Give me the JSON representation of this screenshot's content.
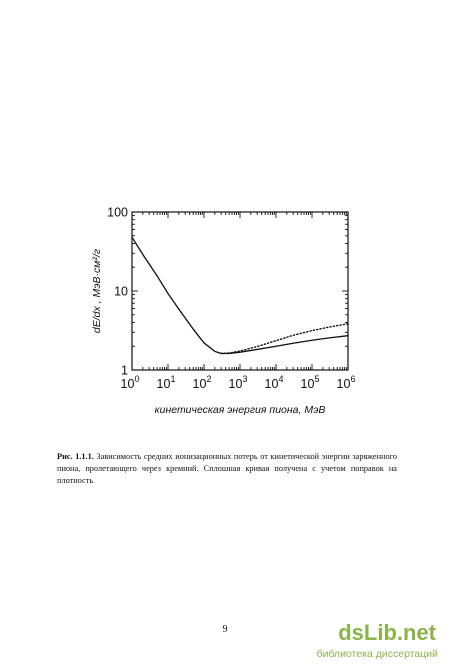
{
  "chart_data": {
    "type": "line",
    "xlabel": "кинетическая энергия пиона, МэВ",
    "ylabel": "dE/dx ,  МэВ·см²/г",
    "xscale": "log",
    "yscale": "log",
    "xlim": [
      1,
      1000000
    ],
    "ylim": [
      1,
      100
    ],
    "x_ticks": [
      1,
      10,
      100,
      1000,
      10000,
      100000,
      1000000
    ],
    "x_tick_labels": [
      {
        "base": "10",
        "exp": "0"
      },
      {
        "base": "10",
        "exp": "1"
      },
      {
        "base": "10",
        "exp": "2"
      },
      {
        "base": "10",
        "exp": "3"
      },
      {
        "base": "10",
        "exp": "4"
      },
      {
        "base": "10",
        "exp": "5"
      },
      {
        "base": "10",
        "exp": "6"
      }
    ],
    "y_ticks": [
      1,
      10,
      100
    ],
    "y_tick_labels": [
      "1",
      "10",
      "100"
    ],
    "grid": false,
    "series": [
      {
        "style": "solid",
        "x": [
          1,
          2,
          5,
          10,
          20,
          50,
          100,
          200,
          300,
          500,
          1000,
          3000,
          10000,
          30000,
          100000,
          300000,
          1000000
        ],
        "y": [
          48,
          29,
          15.5,
          9.3,
          5.9,
          3.3,
          2.2,
          1.72,
          1.62,
          1.62,
          1.68,
          1.82,
          2.0,
          2.18,
          2.38,
          2.55,
          2.72
        ]
      },
      {
        "style": "dotted",
        "x": [
          300,
          500,
          1000,
          3000,
          10000,
          30000,
          100000,
          300000,
          1000000
        ],
        "y": [
          1.62,
          1.64,
          1.74,
          1.98,
          2.35,
          2.75,
          3.15,
          3.5,
          3.85
        ]
      }
    ]
  },
  "caption": {
    "label": "Рис. 1.1.1.",
    "text": " Зависимость средних ионизационных потерь от кинетической энергии заряженного пиона, пролетающего через кремний. Сплошная кривая получена с учетом поправок на плотность"
  },
  "page_number": "9",
  "watermark": {
    "brand": "dsLib.net",
    "subtitle": "библиотека диссертаций"
  }
}
